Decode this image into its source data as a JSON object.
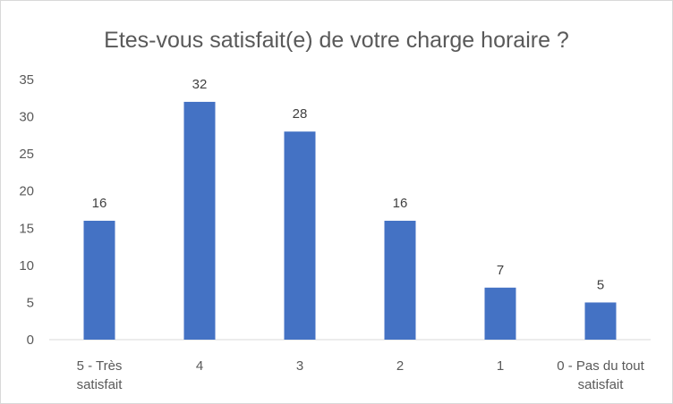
{
  "chart_data": {
    "type": "bar",
    "title": "Etes-vous satisfait(e) de votre charge horaire ?",
    "xlabel": "",
    "ylabel": "",
    "categories": [
      [
        "5 - Très",
        "satisfait"
      ],
      [
        "4"
      ],
      [
        "3"
      ],
      [
        "2"
      ],
      [
        "1"
      ],
      [
        "0 - Pas du tout",
        "satisfait"
      ]
    ],
    "values": [
      16,
      32,
      28,
      16,
      7,
      5
    ],
    "ylim": [
      0,
      35
    ],
    "yticks": [
      0,
      5,
      10,
      15,
      20,
      25,
      30,
      35
    ],
    "grid": false,
    "legend": "none",
    "data_labels": true,
    "colors": {
      "bar": "#4472C4",
      "axis": "#d9d9d9",
      "text": "#595959",
      "data_label": "#404040"
    }
  }
}
